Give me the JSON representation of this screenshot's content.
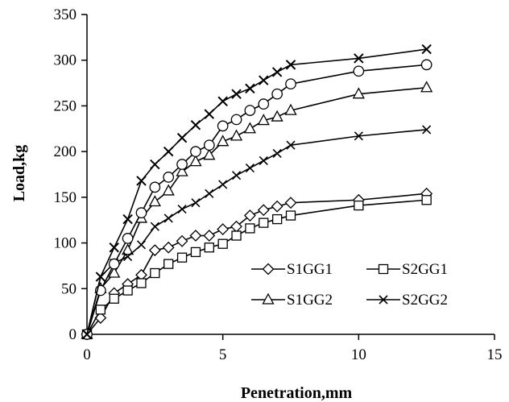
{
  "chart_data": {
    "type": "line",
    "title": "",
    "xlabel": "Penetration,mm",
    "ylabel": "Load,kg",
    "xlim": [
      0,
      15
    ],
    "ylim": [
      0,
      350
    ],
    "xticks": [
      0,
      5,
      10,
      15
    ],
    "yticks": [
      0,
      50,
      100,
      150,
      200,
      250,
      300,
      350
    ],
    "xtick_labels": [
      "0",
      "5",
      "10",
      "15"
    ],
    "ytick_labels": [
      "0",
      "50",
      "100",
      "150",
      "200",
      "250",
      "300",
      "350"
    ],
    "grid": false,
    "legend_position": "lower-right",
    "series": [
      {
        "name": "S1GG1",
        "marker": "diamond",
        "x": [
          0,
          0.5,
          1,
          1.5,
          2,
          2.5,
          3,
          3.5,
          4,
          4.5,
          5,
          5.5,
          6,
          6.5,
          7,
          7.5,
          10,
          12.5
        ],
        "y": [
          0,
          18,
          45,
          55,
          65,
          92,
          95,
          102,
          108,
          108,
          115,
          118,
          130,
          136,
          140,
          144,
          147,
          154
        ]
      },
      {
        "name": "S2GG1",
        "marker": "square",
        "x": [
          0,
          0.5,
          1,
          1.5,
          2,
          2.5,
          3,
          3.5,
          4,
          4.5,
          5,
          5.5,
          6,
          6.5,
          7,
          7.5,
          10,
          12.5
        ],
        "y": [
          0,
          27,
          39,
          48,
          56,
          67,
          77,
          84,
          90,
          95,
          99,
          108,
          116,
          122,
          126,
          130,
          141,
          147
        ]
      },
      {
        "name": "S1GG2",
        "marker": "triangle",
        "x": [
          0,
          0.5,
          1,
          1.5,
          2,
          2.5,
          3,
          3.5,
          4,
          4.5,
          5,
          5.5,
          6,
          6.5,
          7,
          7.5,
          10,
          12.5
        ],
        "y": [
          0,
          50,
          67,
          92,
          127,
          145,
          157,
          178,
          189,
          196,
          211,
          217,
          225,
          234,
          238,
          245,
          263,
          270
        ]
      },
      {
        "name": "S2GG2",
        "marker": "x",
        "x": [
          0,
          0.5,
          1,
          1.5,
          2,
          2.5,
          3,
          3.5,
          4,
          4.5,
          5,
          5.5,
          6,
          6.5,
          7,
          7.5,
          10,
          12.5
        ],
        "y": [
          0,
          63,
          78,
          85,
          98,
          118,
          127,
          137,
          144,
          154,
          164,
          174,
          182,
          190,
          198,
          207,
          217,
          224
        ]
      },
      {
        "name": "",
        "marker": "circle",
        "x": [
          0,
          0.5,
          1,
          1.5,
          2,
          2.5,
          3,
          3.5,
          4,
          4.5,
          5,
          5.5,
          6,
          6.5,
          7,
          7.5,
          10,
          12.5
        ],
        "y": [
          0,
          48,
          77,
          105,
          133,
          161,
          172,
          186,
          200,
          207,
          228,
          235,
          245,
          252,
          263,
          274,
          288,
          295
        ]
      },
      {
        "name": "",
        "marker": "star",
        "x": [
          0,
          0.5,
          1,
          1.5,
          2,
          2.5,
          3,
          3.5,
          4,
          4.5,
          5,
          5.5,
          6,
          6.5,
          7,
          7.5,
          10,
          12.5
        ],
        "y": [
          0,
          63,
          95,
          126,
          168,
          186,
          200,
          215,
          229,
          241,
          255,
          263,
          269,
          278,
          287,
          295,
          302,
          312
        ]
      }
    ],
    "legend": [
      "S1GG1",
      "S2GG1",
      "S1GG2",
      "S2GG2"
    ],
    "colors": {
      "line": "#000000",
      "marker_fill": "#ffffff",
      "background": "#ffffff"
    }
  }
}
